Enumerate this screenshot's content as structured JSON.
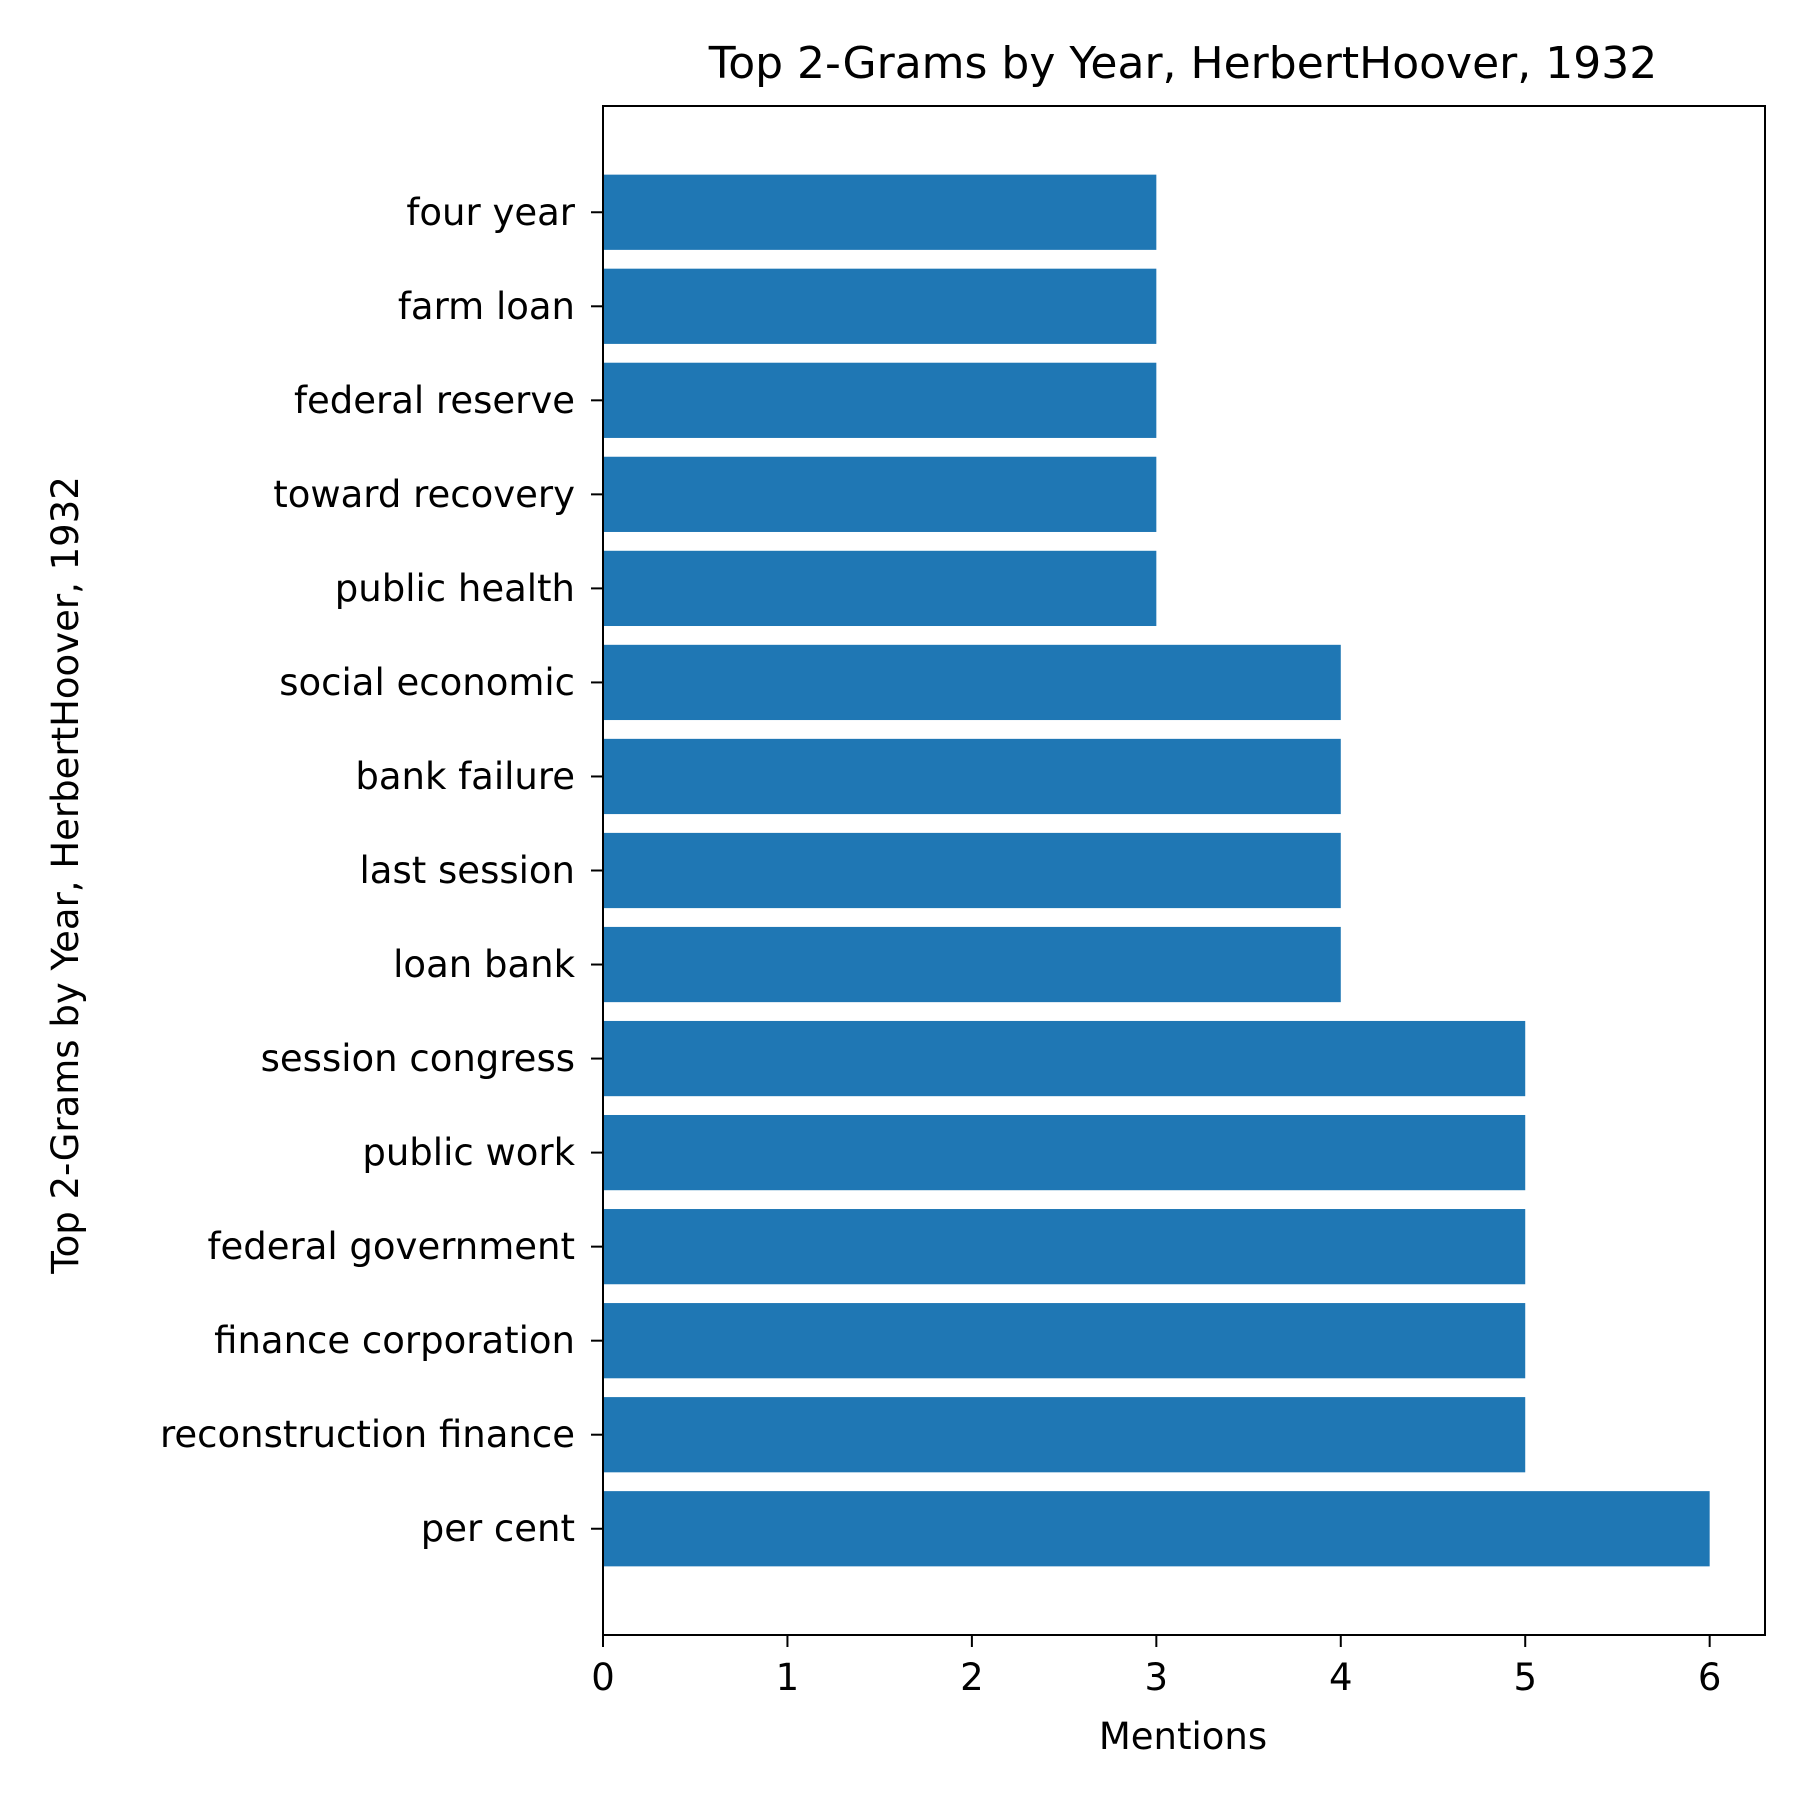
{
  "chart_data": {
    "type": "bar",
    "orientation": "horizontal",
    "title": "Top 2-Grams by Year, HerbertHoover, 1932",
    "xlabel": "Mentions",
    "ylabel": "Top 2-Grams by Year, HerbertHoover, 1932",
    "categories": [
      "per cent",
      "reconstruction finance",
      "finance corporation",
      "federal government",
      "public work",
      "session congress",
      "loan bank",
      "last session",
      "bank failure",
      "social economic",
      "public health",
      "toward recovery",
      "federal reserve",
      "farm loan",
      "four year"
    ],
    "values": [
      6,
      5,
      5,
      5,
      5,
      5,
      4,
      4,
      4,
      4,
      3,
      3,
      3,
      3,
      3
    ],
    "xlim": [
      0,
      6.3
    ],
    "xticks": [
      0,
      1,
      2,
      3,
      4,
      5,
      6
    ],
    "grid": false,
    "bar_color": "#1f77b4"
  }
}
